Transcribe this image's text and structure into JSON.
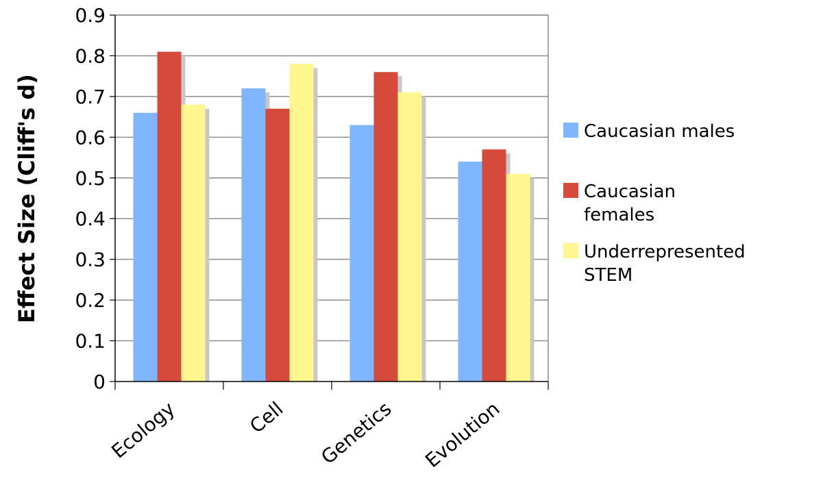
{
  "chart_data": {
    "type": "bar",
    "categories": [
      "Ecology",
      "Cell",
      "Genetics",
      "Evolution"
    ],
    "series": [
      {
        "name": "Caucasian males",
        "values": [
          0.66,
          0.72,
          0.63,
          0.54
        ],
        "color": "#80b5ff"
      },
      {
        "name": "Caucasian females",
        "values": [
          0.81,
          0.67,
          0.76,
          0.57
        ],
        "color": "#d54a3a"
      },
      {
        "name": "Underrepresented STEM",
        "values": [
          0.68,
          0.78,
          0.71,
          0.51
        ],
        "color": "#fff68f"
      }
    ],
    "ylabel": "Effect Size (Cliff's d)",
    "xlabel": "",
    "ylim": [
      0,
      0.9
    ],
    "yticks": [
      "0",
      "0.1",
      "0.2",
      "0.3",
      "0.4",
      "0.5",
      "0.6",
      "0.7",
      "0.8",
      "0.9"
    ],
    "grid": true,
    "legend_position": "right",
    "colors": {
      "shadow": "#c8c8c8",
      "gridline": "#8c8c8c",
      "frame": "#8c8c8c"
    }
  }
}
